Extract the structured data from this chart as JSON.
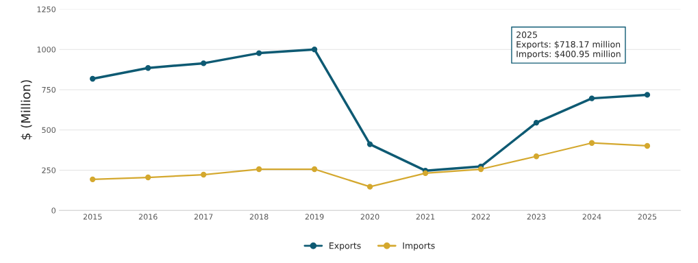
{
  "chart_data": {
    "type": "line",
    "ylabel": "$ (Million)",
    "categories": [
      "2015",
      "2016",
      "2017",
      "2018",
      "2019",
      "2020",
      "2021",
      "2022",
      "2023",
      "2024",
      "2025"
    ],
    "series": [
      {
        "name": "Exports",
        "color": "#0e5a73",
        "values": [
          818,
          885,
          914,
          977,
          1000,
          411,
          247,
          273,
          545,
          696,
          718.17
        ]
      },
      {
        "name": "Imports",
        "color": "#d4a82e",
        "values": [
          193,
          205,
          222,
          256,
          256,
          147,
          231,
          256,
          336,
          419,
          400.95
        ]
      }
    ],
    "ylim": [
      0,
      1250
    ],
    "yticks": [
      0,
      250,
      500,
      750,
      1000,
      1250
    ],
    "grid": "y",
    "legend": "bottom",
    "marker": "circle",
    "line_style": "solid",
    "annotations": [
      "2025",
      "Exports: $718.17 million",
      "Imports: $400.95 million"
    ]
  }
}
